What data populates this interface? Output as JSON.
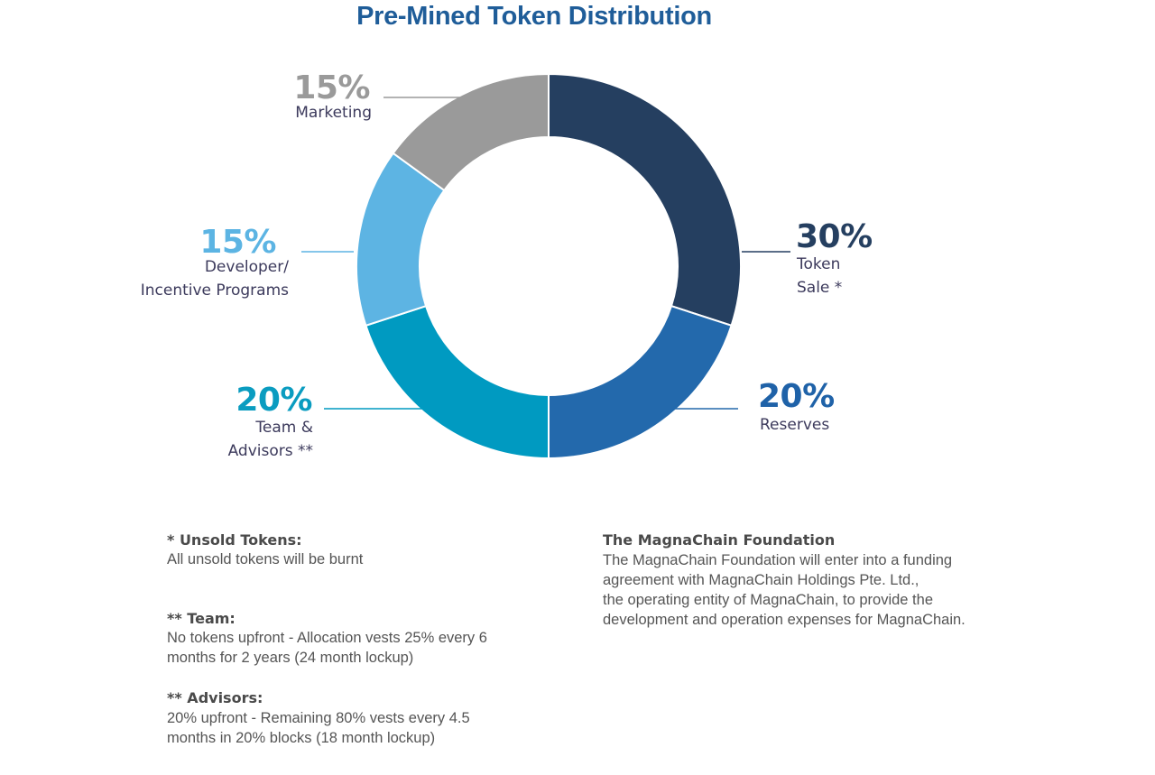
{
  "chart_data": {
    "type": "pie",
    "donut": true,
    "title": "Pre-Mined Token Distribution",
    "slices": [
      {
        "label": "Token Sale *",
        "value": 30,
        "pct_text": "30%",
        "lines": [
          "Token",
          "Sale *"
        ],
        "color": "#253f60",
        "label_color": "#253f60"
      },
      {
        "label": "Reserves",
        "value": 20,
        "pct_text": "20%",
        "lines": [
          "Reserves"
        ],
        "color": "#2369ac",
        "label_color": "#1f62a8"
      },
      {
        "label": "Team & Advisors **",
        "value": 20,
        "pct_text": "20%",
        "lines": [
          "Team &",
          "Advisors **"
        ],
        "color": "#009ac1",
        "label_color": "#0a9cc0"
      },
      {
        "label": "Developer/ Incentive Programs",
        "value": 15,
        "pct_text": "15%",
        "lines": [
          "Developer/",
          "Incentive Programs"
        ],
        "color": "#5db4e3",
        "label_color": "#5cb4e3"
      },
      {
        "label": "Marketing",
        "value": 15,
        "pct_text": "15%",
        "lines": [
          "Marketing"
        ],
        "color": "#9a9a9a",
        "label_color": "#9a9a9a"
      }
    ]
  },
  "notes": {
    "unsold": {
      "heading": "* Unsold Tokens:",
      "body": "All unsold tokens will be burnt"
    },
    "team": {
      "heading": "** Team:",
      "body_lines": [
        "No tokens upfront - Allocation vests 25% every 6",
        "months for 2 years (24 month lockup)"
      ]
    },
    "advisors": {
      "heading": "** Advisors:",
      "body_lines": [
        "20% upfront - Remaining 80% vests every 4.5",
        "months in 20% blocks (18 month lockup)"
      ]
    },
    "foundation": {
      "heading": "The MagnaChain Foundation",
      "body_lines": [
        "The MagnaChain Foundation will enter into a funding",
        "agreement with MagnaChain Holdings Pte. Ltd.,",
        "the operating entity of MagnaChain, to provide the",
        "development and operation expenses for MagnaChain."
      ]
    }
  }
}
